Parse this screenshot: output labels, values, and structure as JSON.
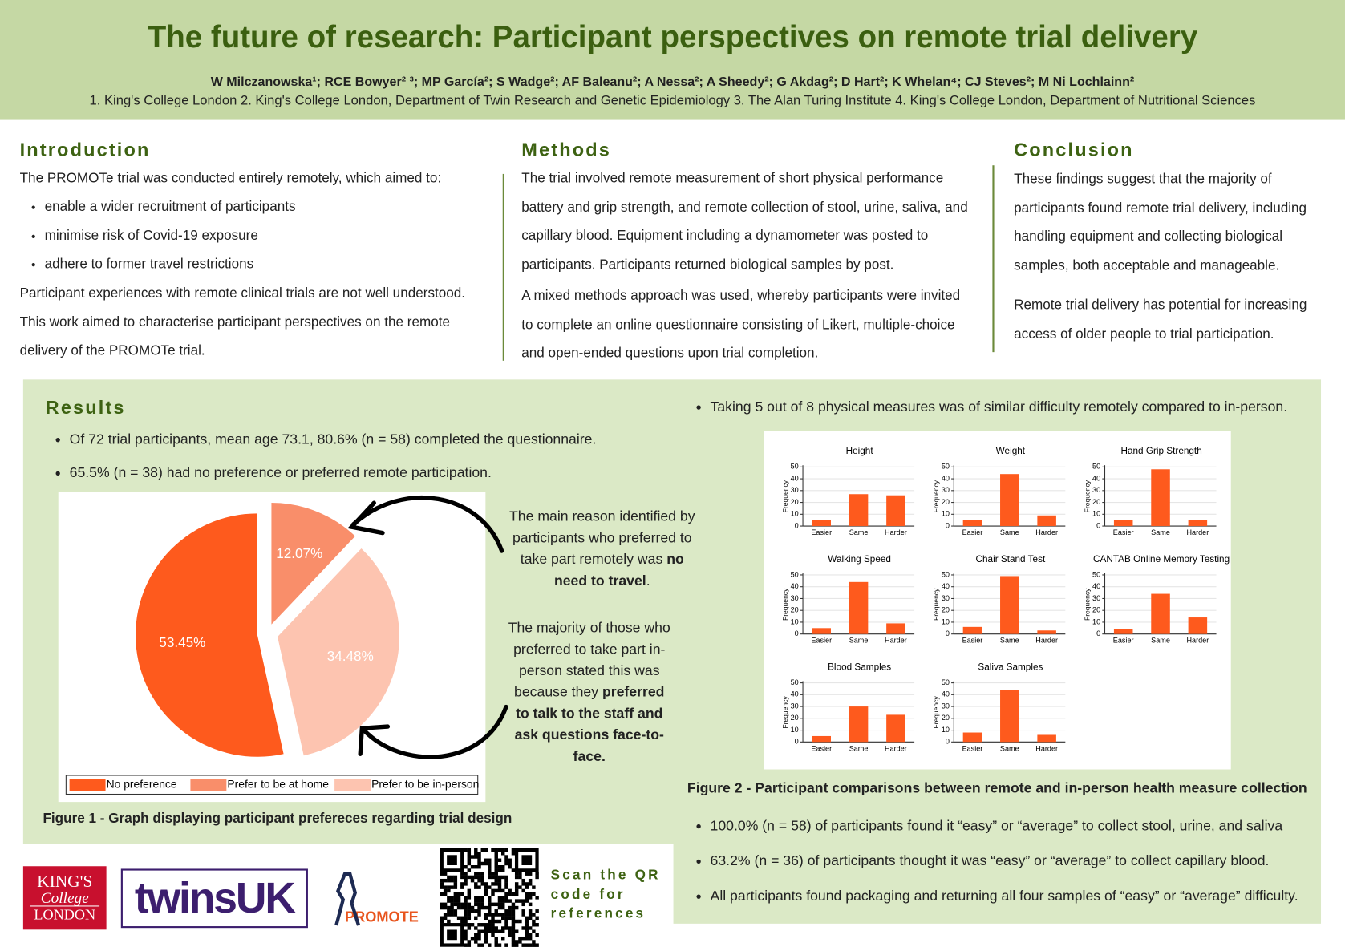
{
  "header": {
    "title": "The future of research: Participant perspectives on remote trial delivery",
    "authors": "W Milczanowska¹; RCE Bowyer² ³; MP García²; S Wadge²; AF Baleanu²; A Nessa²; A Sheedy²; G Akdag²; D Hart²; K Whelan⁴; CJ Steves²; M Ni Lochlainn²",
    "affiliations": "1. King's College London 2. King's College London, Department of Twin Research and Genetic Epidemiology 3. The Alan Turing Institute 4. King's College London, Department of Nutritional Sciences"
  },
  "introduction": {
    "heading": "Introduction",
    "lead": "The PROMOTe trial was conducted entirely remotely, which aimed to:",
    "bullets": [
      "enable a wider recruitment of participants",
      "minimise risk of Covid-19 exposure",
      "adhere to former travel restrictions"
    ],
    "text": "Participant experiences with remote clinical trials are not well understood. This work aimed to characterise participant perspectives on the remote delivery of the PROMOTe trial."
  },
  "methods": {
    "heading": "Methods",
    "paragraphs": [
      "The trial involved remote measurement of short physical performance battery and grip strength, and remote collection of stool, urine, saliva, and capillary blood. Equipment including a dynamometer was posted to participants. Participants returned biological samples by post.",
      "A mixed methods approach was used, whereby participants were invited to complete an online questionnaire consisting of Likert, multiple-choice and open-ended questions upon trial completion."
    ]
  },
  "conclusion": {
    "heading": "Conclusion",
    "paragraphs": [
      "These findings suggest that the majority of participants found remote trial delivery, including handling equipment and collecting biological samples, both acceptable and manageable.",
      "Remote trial delivery has potential for increasing access of older people to trial participation."
    ]
  },
  "results": {
    "heading": "Results",
    "bullets_left": [
      "Of 72 trial participants, mean age 73.1, 80.6% (n = 58) completed the questionnaire.",
      "65.5% (n = 38) had no preference or preferred remote participation."
    ],
    "bullet_right": "Taking 5 out of 8 physical measures was of similar difficulty remotely compared to in-person.",
    "bullets_bottom": [
      "100.0% (n = 58) of participants found it “easy” or “average” to collect stool, urine, and saliva",
      "63.2% (n = 36) of participants thought it was “easy” or “average” to collect capillary blood.",
      "All participants found packaging and returning all four samples of “easy” or “average” difficulty."
    ],
    "note_remote": {
      "text": "The main reason identified by participants who preferred to take part remotely was ",
      "emphasis": "no need to travel",
      "end": "."
    },
    "note_in_person": {
      "text": "The majority of those who preferred to take part in-person stated this was because they ",
      "emphasis": "preferred to talk to the staff and ask questions face-to-face."
    }
  },
  "figure1": {
    "caption": "Figure 1 - Graph displaying participant prefereces regarding trial design",
    "chart": {
      "type": "pie",
      "categories": [
        "No preference",
        "Prefer to be at home",
        "Prefer to be in-person"
      ],
      "values": [
        53.45,
        12.07,
        34.48
      ],
      "value_labels": [
        "53.45%",
        "12.07%",
        "34.48%"
      ],
      "colors": [
        "#fe5a1d",
        "#f98e6a",
        "#fdc4b0"
      ],
      "legend": "bottom"
    }
  },
  "figure2": {
    "caption": "Figure 2 - Participant comparisons between remote and in-person health measure collection",
    "charts": [
      {
        "type": "bar",
        "title": "Height",
        "categories": [
          "Easier",
          "Same",
          "Harder"
        ],
        "values": [
          5,
          27,
          26
        ],
        "y_label": "Frequency",
        "ylim": [
          0,
          50
        ],
        "yticks": [
          0,
          10,
          20,
          30,
          40,
          50
        ],
        "color": "#fe5a1d",
        "grid": true
      },
      {
        "type": "bar",
        "title": "Weight",
        "categories": [
          "Easier",
          "Same",
          "Harder"
        ],
        "values": [
          5,
          44,
          9
        ],
        "y_label": "Frequency",
        "ylim": [
          0,
          50
        ],
        "yticks": [
          0,
          10,
          20,
          30,
          40,
          50
        ],
        "color": "#fe5a1d",
        "grid": true
      },
      {
        "type": "bar",
        "title": "Hand Grip Strength",
        "categories": [
          "Easier",
          "Same",
          "Harder"
        ],
        "values": [
          5,
          48,
          5
        ],
        "y_label": "Frequency",
        "ylim": [
          0,
          50
        ],
        "yticks": [
          0,
          10,
          20,
          30,
          40,
          50
        ],
        "color": "#fe5a1d",
        "grid": true
      },
      {
        "type": "bar",
        "title": "Walking Speed",
        "categories": [
          "Easier",
          "Same",
          "Harder"
        ],
        "values": [
          5,
          44,
          9
        ],
        "y_label": "Frequency",
        "ylim": [
          0,
          50
        ],
        "yticks": [
          0,
          10,
          20,
          30,
          40,
          50
        ],
        "color": "#fe5a1d",
        "grid": true
      },
      {
        "type": "bar",
        "title": "Chair Stand Test",
        "categories": [
          "Easier",
          "Same",
          "Harder"
        ],
        "values": [
          6,
          49,
          3
        ],
        "y_label": "Frequency",
        "ylim": [
          0,
          50
        ],
        "yticks": [
          0,
          10,
          20,
          30,
          40,
          50
        ],
        "color": "#fe5a1d",
        "grid": true
      },
      {
        "type": "bar",
        "title": "CANTAB Online Memory Testing",
        "categories": [
          "Easier",
          "Same",
          "Harder"
        ],
        "values": [
          4,
          34,
          14
        ],
        "y_label": "Frequency",
        "ylim": [
          0,
          50
        ],
        "yticks": [
          0,
          10,
          20,
          30,
          40,
          50
        ],
        "color": "#fe5a1d",
        "grid": true
      },
      {
        "type": "bar",
        "title": "Blood Samples",
        "categories": [
          "Easier",
          "Same",
          "Harder"
        ],
        "values": [
          5,
          30,
          23
        ],
        "y_label": "Frequency",
        "ylim": [
          0,
          50
        ],
        "yticks": [
          0,
          10,
          20,
          30,
          40,
          50
        ],
        "color": "#fe5a1d",
        "grid": true
      },
      {
        "type": "bar",
        "title": "Saliva Samples",
        "categories": [
          "Easier",
          "Same",
          "Harder"
        ],
        "values": [
          8,
          44,
          6
        ],
        "y_label": "Frequency",
        "ylim": [
          0,
          50
        ],
        "yticks": [
          0,
          10,
          20,
          30,
          40,
          50
        ],
        "color": "#fe5a1d",
        "grid": true
      }
    ]
  },
  "logos": {
    "kings": [
      "KING'S",
      "College",
      "LONDON"
    ],
    "twins": "twinsUK",
    "promote": "PROMOTE"
  },
  "qr": {
    "caption": "Scan the QR code for references"
  }
}
